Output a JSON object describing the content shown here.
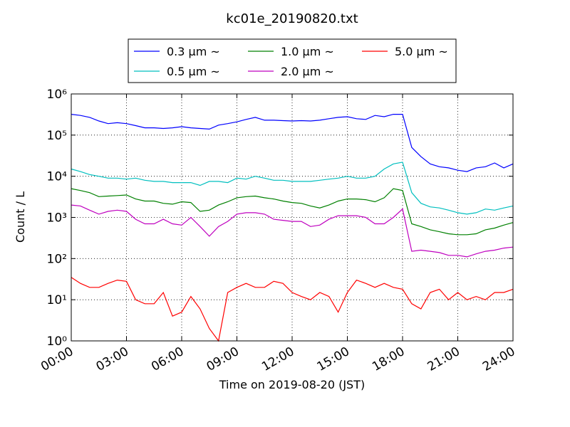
{
  "chart_data": {
    "type": "line",
    "title": "kc01e_20190820.txt",
    "x_label": "Time on 2019-08-20 (JST)",
    "y_label": "Count / L",
    "log_y": true,
    "grid": true,
    "legend": "upper center",
    "xlim": [
      0,
      24
    ],
    "ylim": [
      1,
      1000000
    ],
    "xticks": [
      {
        "value": 0,
        "label": "00:00"
      },
      {
        "value": 3,
        "label": "03:00"
      },
      {
        "value": 6,
        "label": "06:00"
      },
      {
        "value": 9,
        "label": "09:00"
      },
      {
        "value": 12,
        "label": "12:00"
      },
      {
        "value": 15,
        "label": "15:00"
      },
      {
        "value": 18,
        "label": "18:00"
      },
      {
        "value": 21,
        "label": "21:00"
      },
      {
        "value": 24,
        "label": "24:00"
      }
    ],
    "yticks": [
      {
        "value": 1,
        "label": "10⁰"
      },
      {
        "value": 10,
        "label": "10¹"
      },
      {
        "value": 100,
        "label": "10²"
      },
      {
        "value": 1000,
        "label": "10³"
      },
      {
        "value": 10000,
        "label": "10⁴"
      },
      {
        "value": 100000,
        "label": "10⁵"
      },
      {
        "value": 1000000,
        "label": "10⁶"
      }
    ],
    "x": [
      0,
      0.5,
      1,
      1.5,
      2,
      2.5,
      3,
      3.5,
      4,
      4.5,
      5,
      5.5,
      6,
      6.5,
      7,
      7.5,
      8,
      8.5,
      9,
      9.5,
      10,
      10.5,
      11,
      11.5,
      12,
      12.5,
      13,
      13.5,
      14,
      14.5,
      15,
      15.5,
      16,
      16.5,
      17,
      17.5,
      18,
      18.5,
      19,
      19.5,
      20,
      20.5,
      21,
      21.5,
      22,
      22.5,
      23,
      23.5,
      24
    ],
    "series": [
      {
        "name": "0.3 μm ~",
        "color": "#0000ff",
        "values": [
          320000,
          300000,
          270000,
          220000,
          190000,
          200000,
          190000,
          170000,
          150000,
          150000,
          145000,
          150000,
          160000,
          150000,
          145000,
          140000,
          175000,
          190000,
          210000,
          240000,
          270000,
          230000,
          230000,
          225000,
          220000,
          225000,
          220000,
          230000,
          250000,
          270000,
          280000,
          250000,
          240000,
          300000,
          280000,
          320000,
          320000,
          50000,
          30000,
          20000,
          17000,
          16000,
          14000,
          13000,
          16000,
          17000,
          21000,
          16000,
          20000
        ]
      },
      {
        "name": "0.5 μm ~",
        "color": "#00bfbf",
        "values": [
          15000,
          13000,
          11000,
          10000,
          9000,
          9000,
          8500,
          9000,
          8000,
          7500,
          7500,
          7000,
          7000,
          7000,
          6000,
          7500,
          7500,
          7000,
          9000,
          8500,
          10000,
          9000,
          8000,
          8000,
          7500,
          7500,
          7500,
          8000,
          8500,
          9000,
          10000,
          9000,
          9000,
          10000,
          15000,
          20000,
          22000,
          4000,
          2200,
          1800,
          1700,
          1500,
          1300,
          1200,
          1300,
          1600,
          1500,
          1700,
          1900
        ]
      },
      {
        "name": "1.0 μm ~",
        "color": "#008000",
        "values": [
          5000,
          4500,
          4000,
          3200,
          3300,
          3400,
          3500,
          2800,
          2500,
          2500,
          2200,
          2100,
          2400,
          2300,
          1400,
          1500,
          2000,
          2400,
          3000,
          3200,
          3300,
          3000,
          2800,
          2500,
          2300,
          2200,
          1900,
          1700,
          2000,
          2500,
          2800,
          2800,
          2700,
          2400,
          3000,
          5000,
          4500,
          700,
          600,
          500,
          450,
          400,
          380,
          380,
          400,
          500,
          550,
          650,
          750
        ]
      },
      {
        "name": "2.0 μm ~",
        "color": "#bf00bf",
        "values": [
          2000,
          1900,
          1500,
          1200,
          1400,
          1500,
          1400,
          900,
          700,
          700,
          900,
          700,
          650,
          1000,
          600,
          350,
          600,
          800,
          1200,
          1300,
          1300,
          1200,
          900,
          850,
          800,
          800,
          600,
          650,
          900,
          1100,
          1100,
          1100,
          1000,
          700,
          700,
          1000,
          1600,
          150,
          160,
          150,
          140,
          120,
          120,
          110,
          130,
          150,
          160,
          180,
          190
        ]
      },
      {
        "name": "5.0 μm ~",
        "color": "#ff0000",
        "values": [
          35,
          25,
          20,
          20,
          25,
          30,
          28,
          10,
          8,
          8,
          15,
          4,
          5,
          12,
          6,
          2,
          1,
          15,
          20,
          25,
          20,
          20,
          28,
          25,
          15,
          12,
          10,
          15,
          12,
          5,
          15,
          30,
          25,
          20,
          25,
          20,
          18,
          8,
          6,
          15,
          18,
          10,
          15,
          10,
          12,
          10,
          15,
          15,
          18
        ]
      }
    ]
  }
}
